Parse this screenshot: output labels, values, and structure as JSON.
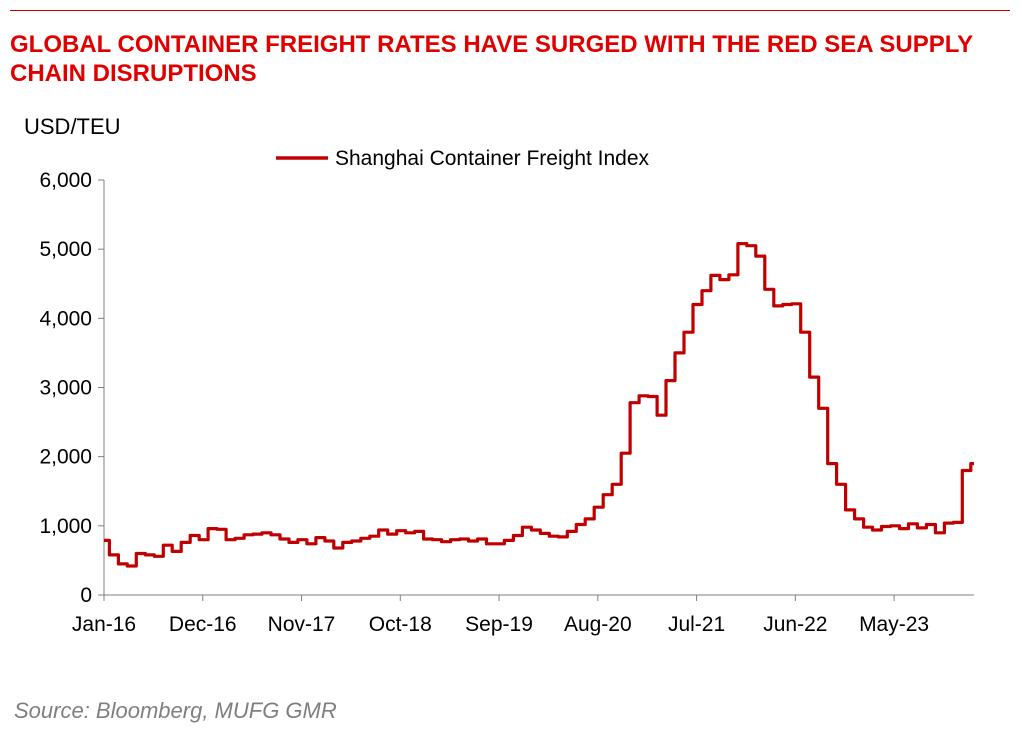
{
  "title": "GLOBAL CONTAINER FREIGHT RATES HAVE SURGED WITH THE RED SEA SUPPLY CHAIN DISRUPTIONS",
  "source": "Source: Bloomberg, MUFG GMR",
  "colors": {
    "title": "#e00000",
    "series": "#c00000",
    "source": "#7f7f7f"
  },
  "chart_data": {
    "type": "line",
    "title": "GLOBAL CONTAINER FREIGHT RATES HAVE SURGED WITH THE RED SEA SUPPLY CHAIN DISRUPTIONS",
    "ylabel": "USD/TEU",
    "xlabel": "",
    "ylim": [
      0,
      6000
    ],
    "yticks": [
      0,
      1000,
      2000,
      3000,
      4000,
      5000,
      6000
    ],
    "ytick_labels": [
      "0",
      "1,000",
      "2,000",
      "3,000",
      "4,000",
      "5,000",
      "6,000"
    ],
    "xlim": [
      "2016-01",
      "2024-01"
    ],
    "xtick_labels": [
      "Jan-16",
      "Dec-16",
      "Nov-17",
      "Oct-18",
      "Sep-19",
      "Aug-20",
      "Jul-21",
      "Jun-22",
      "May-23"
    ],
    "xticks": [
      "2016-01",
      "2016-12",
      "2017-11",
      "2018-10",
      "2019-09",
      "2020-08",
      "2021-07",
      "2022-06",
      "2023-05"
    ],
    "grid": false,
    "legend": "top-center",
    "series": [
      {
        "name": "Shanghai Container Freight Index",
        "points": [
          [
            "2016-01",
            790
          ],
          [
            "2016-02",
            580
          ],
          [
            "2016-03",
            450
          ],
          [
            "2016-04",
            420
          ],
          [
            "2016-05",
            600
          ],
          [
            "2016-06",
            580
          ],
          [
            "2016-07",
            560
          ],
          [
            "2016-08",
            720
          ],
          [
            "2016-09",
            630
          ],
          [
            "2016-10",
            760
          ],
          [
            "2016-11",
            860
          ],
          [
            "2016-12",
            800
          ],
          [
            "2017-01",
            960
          ],
          [
            "2017-02",
            950
          ],
          [
            "2017-03",
            800
          ],
          [
            "2017-04",
            820
          ],
          [
            "2017-05",
            870
          ],
          [
            "2017-06",
            880
          ],
          [
            "2017-07",
            900
          ],
          [
            "2017-08",
            870
          ],
          [
            "2017-09",
            810
          ],
          [
            "2017-10",
            760
          ],
          [
            "2017-11",
            800
          ],
          [
            "2017-12",
            740
          ],
          [
            "2018-01",
            830
          ],
          [
            "2018-02",
            780
          ],
          [
            "2018-03",
            680
          ],
          [
            "2018-04",
            760
          ],
          [
            "2018-05",
            780
          ],
          [
            "2018-06",
            820
          ],
          [
            "2018-07",
            850
          ],
          [
            "2018-08",
            940
          ],
          [
            "2018-09",
            880
          ],
          [
            "2018-10",
            930
          ],
          [
            "2018-11",
            900
          ],
          [
            "2018-12",
            920
          ],
          [
            "2019-01",
            810
          ],
          [
            "2019-02",
            800
          ],
          [
            "2019-03",
            770
          ],
          [
            "2019-04",
            800
          ],
          [
            "2019-05",
            810
          ],
          [
            "2019-06",
            780
          ],
          [
            "2019-07",
            810
          ],
          [
            "2019-08",
            740
          ],
          [
            "2019-09",
            740
          ],
          [
            "2019-10",
            790
          ],
          [
            "2019-11",
            860
          ],
          [
            "2019-12",
            980
          ],
          [
            "2020-01",
            940
          ],
          [
            "2020-02",
            890
          ],
          [
            "2020-03",
            850
          ],
          [
            "2020-04",
            840
          ],
          [
            "2020-05",
            920
          ],
          [
            "2020-06",
            1020
          ],
          [
            "2020-07",
            1100
          ],
          [
            "2020-08",
            1270
          ],
          [
            "2020-09",
            1450
          ],
          [
            "2020-10",
            1600
          ],
          [
            "2020-11",
            2050
          ],
          [
            "2020-12",
            2780
          ],
          [
            "2021-01",
            2880
          ],
          [
            "2021-02",
            2870
          ],
          [
            "2021-03",
            2600
          ],
          [
            "2021-04",
            3100
          ],
          [
            "2021-05",
            3500
          ],
          [
            "2021-06",
            3800
          ],
          [
            "2021-07",
            4200
          ],
          [
            "2021-08",
            4400
          ],
          [
            "2021-09",
            4620
          ],
          [
            "2021-10",
            4560
          ],
          [
            "2021-11",
            4630
          ],
          [
            "2021-12",
            5080
          ],
          [
            "2022-01",
            5050
          ],
          [
            "2022-02",
            4900
          ],
          [
            "2022-03",
            4420
          ],
          [
            "2022-04",
            4180
          ],
          [
            "2022-05",
            4200
          ],
          [
            "2022-06",
            4210
          ],
          [
            "2022-07",
            3800
          ],
          [
            "2022-08",
            3150
          ],
          [
            "2022-09",
            2700
          ],
          [
            "2022-10",
            1900
          ],
          [
            "2022-11",
            1600
          ],
          [
            "2022-12",
            1230
          ],
          [
            "2023-01",
            1100
          ],
          [
            "2023-02",
            980
          ],
          [
            "2023-03",
            940
          ],
          [
            "2023-04",
            990
          ],
          [
            "2023-05",
            1000
          ],
          [
            "2023-06",
            960
          ],
          [
            "2023-07",
            1030
          ],
          [
            "2023-08",
            970
          ],
          [
            "2023-09",
            1020
          ],
          [
            "2023-10",
            900
          ],
          [
            "2023-11",
            1040
          ],
          [
            "2023-12",
            1050
          ],
          [
            "2024-01",
            1800
          ],
          [
            "2024-01",
            1900
          ]
        ]
      }
    ]
  }
}
